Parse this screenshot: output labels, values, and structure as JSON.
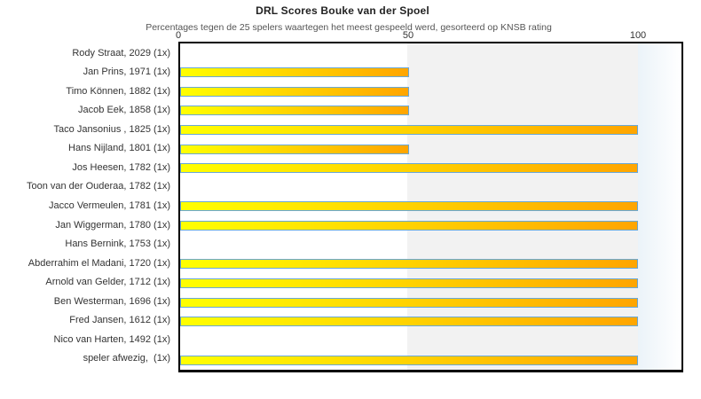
{
  "chart_data": {
    "type": "bar",
    "orientation": "horizontal",
    "title": "DRL Scores Bouke van der Spoel",
    "subtitle": "Percentages tegen de 25 spelers waartegen het meest gespeeld werd, gesorteerd op KNSB rating",
    "categories": [
      "Rody Straat, 2029 (1x)",
      "Jan Prins, 1971 (1x)",
      "Timo Können, 1882 (1x)",
      "Jacob Eek, 1858 (1x)",
      "Taco Jansonius , 1825 (1x)",
      "Hans Nijland, 1801 (1x)",
      "Jos Heesen, 1782 (1x)",
      "Toon van der Ouderaa, 1782 (1x)",
      "Jacco Vermeulen, 1781 (1x)",
      "Jan Wiggerman, 1780 (1x)",
      "Hans Bernink, 1753 (1x)",
      "Abderrahim el Madani, 1720 (1x)",
      "Arnold van Gelder, 1712 (1x)",
      "Ben Westerman, 1696 (1x)",
      "Fred Jansen, 1612 (1x)",
      "Nico van Harten, 1492 (1x)",
      "speler afwezig,  (1x)"
    ],
    "values": [
      0,
      50,
      50,
      50,
      100,
      50,
      100,
      0,
      100,
      100,
      0,
      100,
      100,
      100,
      100,
      0,
      100
    ],
    "xticks": [
      0,
      50,
      100
    ],
    "xlim": [
      0,
      110
    ],
    "xlabel": "",
    "ylabel": "",
    "legend": "none",
    "grid": "vertical shaded band between 50 and 100"
  },
  "style": {
    "bar_gradient_start": "#ffff00",
    "bar_gradient_end": "#ffa500",
    "bar_border": "#69a8d6",
    "band_white": "#ffffff",
    "band_gray": "#f2f2f2",
    "band_beyond_start": "#ebf3f9",
    "band_beyond_end": "#ffffff",
    "plot_border": "#000000",
    "title_color": "#222222",
    "subtitle_color": "#555555",
    "label_color": "#333333"
  }
}
